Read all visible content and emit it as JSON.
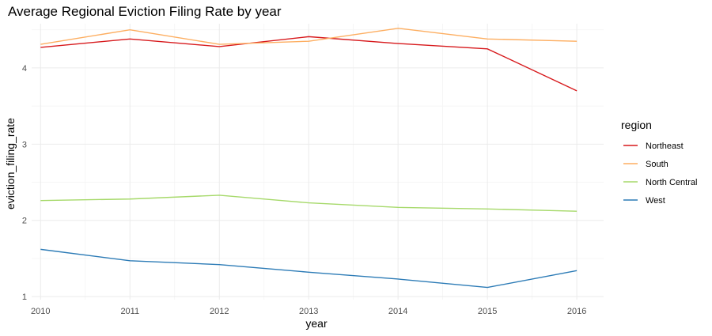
{
  "chart_data": {
    "type": "line",
    "title": "Average Regional Eviction Filing Rate by year",
    "xlabel": "year",
    "ylabel": "eviction_filing_rate",
    "x": [
      2010,
      2011,
      2012,
      2013,
      2014,
      2015,
      2016
    ],
    "xlim": [
      2009.9,
      2016.3
    ],
    "ylim": [
      0.96,
      4.58
    ],
    "y_ticks": [
      1,
      2,
      3,
      4
    ],
    "grid": true,
    "legend": {
      "title": "region",
      "position": "right"
    },
    "series": [
      {
        "name": "Northeast",
        "color": "#d7191c",
        "values": [
          4.27,
          4.38,
          4.28,
          4.41,
          4.32,
          4.25,
          3.7
        ]
      },
      {
        "name": "South",
        "color": "#fdae61",
        "values": [
          4.31,
          4.5,
          4.31,
          4.35,
          4.52,
          4.38,
          4.35
        ]
      },
      {
        "name": "North Central",
        "color": "#a6d96a",
        "values": [
          2.26,
          2.28,
          2.33,
          2.23,
          2.17,
          2.15,
          2.12
        ]
      },
      {
        "name": "West",
        "color": "#2c7bb6",
        "values": [
          1.62,
          1.47,
          1.42,
          1.32,
          1.23,
          1.12,
          1.34
        ]
      }
    ]
  }
}
